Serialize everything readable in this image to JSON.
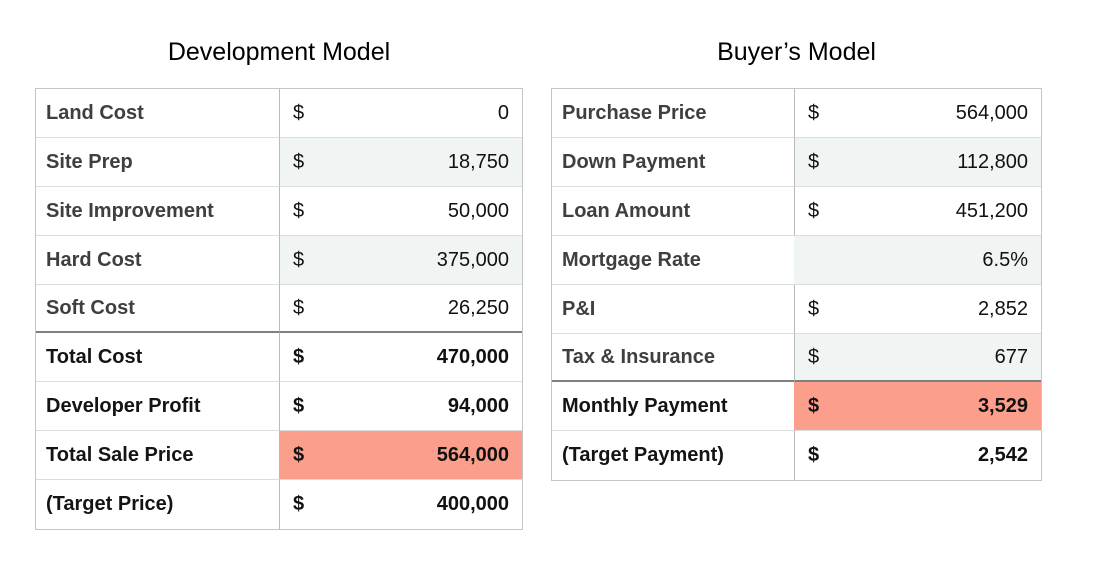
{
  "tables": [
    {
      "title": "Development Model",
      "rows": [
        {
          "label": "Land Cost",
          "currency": "$",
          "value": "0"
        },
        {
          "label": "Site Prep",
          "currency": "$",
          "value": "18,750",
          "shaded": true
        },
        {
          "label": "Site Improvement",
          "currency": "$",
          "value": "50,000"
        },
        {
          "label": "Hard Cost",
          "currency": "$",
          "value": "375,000",
          "shaded": true
        },
        {
          "label": "Soft Cost",
          "currency": "$",
          "value": "26,250",
          "section_end": true
        },
        {
          "label": "Total Cost",
          "currency": "$",
          "value": "470,000",
          "bold": true
        },
        {
          "label": "Developer Profit",
          "currency": "$",
          "value": "94,000",
          "bold": true
        },
        {
          "label": "Total Sale Price",
          "currency": "$",
          "value": "564,000",
          "bold": true,
          "highlight": true
        },
        {
          "label": "(Target Price)",
          "currency": "$",
          "value": "400,000",
          "bold": true
        }
      ]
    },
    {
      "title": "Buyer’s Model",
      "rows": [
        {
          "label": "Purchase Price",
          "currency": "$",
          "value": "564,000"
        },
        {
          "label": "Down Payment",
          "currency": "$",
          "value": "112,800",
          "shaded": true
        },
        {
          "label": "Loan Amount",
          "currency": "$",
          "value": "451,200"
        },
        {
          "label": "Mortgage Rate",
          "currency": "",
          "value": "6.5%",
          "shaded": true,
          "no_divider": true
        },
        {
          "label": "P&I",
          "currency": "$",
          "value": "2,852"
        },
        {
          "label": "Tax & Insurance",
          "currency": "$",
          "value": "677",
          "shaded": true,
          "section_end": true
        },
        {
          "label": "Monthly Payment",
          "currency": "$",
          "value": "3,529",
          "bold": true,
          "highlight": true
        },
        {
          "label": "(Target Payment)",
          "currency": "$",
          "value": "2,542",
          "bold": true
        }
      ]
    }
  ],
  "colors": {
    "highlight": "#FC9E8C",
    "shaded": "#F0F5F3",
    "outer_border": "#C3C6C5",
    "row_border": "#DBDDDC",
    "col_divider": "#B7BAB9",
    "section_border": "#7D807F",
    "label_text": "#3E4040",
    "value_text": "#101111"
  }
}
